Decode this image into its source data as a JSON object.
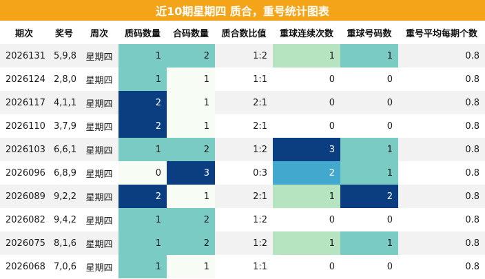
{
  "title": "近10期星期四 质合，重号统计图表",
  "columns": [
    "期次",
    "奖号",
    "周次",
    "质码数量",
    "合码数量",
    "质合数比值",
    "重球连续次数",
    "重球号码数",
    "重号平均每期个数"
  ],
  "rows": [
    {
      "period": "2026131",
      "numbers": "5,9,8",
      "weekday": "星期四",
      "prime": "1",
      "composite": "2",
      "ratio": "1:2",
      "repeat_streak": "1",
      "repeat_count": "1",
      "avg": "0.8"
    },
    {
      "period": "2026124",
      "numbers": "2,8,0",
      "weekday": "星期四",
      "prime": "1",
      "composite": "1",
      "ratio": "1:1",
      "repeat_streak": "0",
      "repeat_count": "0",
      "avg": "0.8"
    },
    {
      "period": "2026117",
      "numbers": "4,1,1",
      "weekday": "星期四",
      "prime": "2",
      "composite": "1",
      "ratio": "2:1",
      "repeat_streak": "0",
      "repeat_count": "0",
      "avg": "0.8"
    },
    {
      "period": "2026110",
      "numbers": "3,7,9",
      "weekday": "星期四",
      "prime": "2",
      "composite": "1",
      "ratio": "2:1",
      "repeat_streak": "0",
      "repeat_count": "0",
      "avg": "0.8"
    },
    {
      "period": "2026103",
      "numbers": "6,6,1",
      "weekday": "星期四",
      "prime": "1",
      "composite": "2",
      "ratio": "1:2",
      "repeat_streak": "3",
      "repeat_count": "1",
      "avg": "0.8"
    },
    {
      "period": "2026096",
      "numbers": "6,8,9",
      "weekday": "星期四",
      "prime": "0",
      "composite": "3",
      "ratio": "0:3",
      "repeat_streak": "2",
      "repeat_count": "1",
      "avg": "0.8"
    },
    {
      "period": "2026089",
      "numbers": "9,2,2",
      "weekday": "星期四",
      "prime": "2",
      "composite": "1",
      "ratio": "2:1",
      "repeat_streak": "1",
      "repeat_count": "2",
      "avg": "0.8"
    },
    {
      "period": "2026082",
      "numbers": "9,4,2",
      "weekday": "星期四",
      "prime": "1",
      "composite": "2",
      "ratio": "1:2",
      "repeat_streak": "0",
      "repeat_count": "0",
      "avg": "0.8"
    },
    {
      "period": "2026075",
      "numbers": "8,1,6",
      "weekday": "星期四",
      "prime": "1",
      "composite": "2",
      "ratio": "1:2",
      "repeat_streak": "1",
      "repeat_count": "1",
      "avg": "0.8"
    },
    {
      "period": "2026068",
      "numbers": "7,0,6",
      "weekday": "星期四",
      "prime": "1",
      "composite": "1",
      "ratio": "1:1",
      "repeat_streak": "0",
      "repeat_count": "0",
      "avg": "0.8"
    }
  ],
  "colors": {
    "title_bg": "#f4a418",
    "count_low": "#f7fcf5",
    "count_mid": "#79cbc4",
    "count_high": "#0a3e80",
    "streak_1": "#b7e4c0",
    "streak_2": "#43a8ce",
    "streak_3": "#0a3e80"
  }
}
